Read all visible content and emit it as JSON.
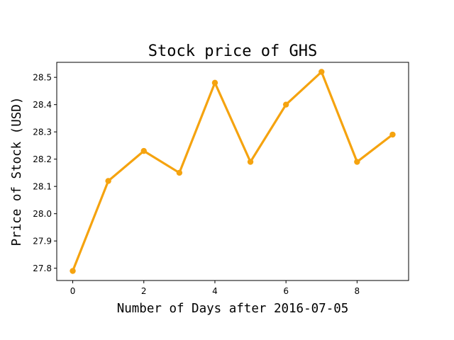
{
  "chart_data": {
    "type": "line",
    "title": "Stock price of GHS",
    "xlabel": "Number of Days after 2016-07-05",
    "ylabel": "Price of Stock (USD)",
    "xlim": [
      -0.45,
      9.45
    ],
    "ylim": [
      27.755,
      28.555
    ],
    "xticks": [
      0,
      2,
      4,
      6,
      8
    ],
    "yticks": [
      27.8,
      27.9,
      28.0,
      28.1,
      28.2,
      28.3,
      28.4,
      28.5
    ],
    "ytick_labels": [
      "27.8",
      "27.9",
      "28.0",
      "28.1",
      "28.2",
      "28.3",
      "28.4",
      "28.5"
    ],
    "grid": false,
    "color": "#f5a30f",
    "x": [
      0,
      1,
      2,
      3,
      4,
      5,
      6,
      7,
      8,
      9
    ],
    "values": [
      27.79,
      28.12,
      28.23,
      28.15,
      28.48,
      28.19,
      28.4,
      28.52,
      28.19,
      28.29
    ]
  }
}
